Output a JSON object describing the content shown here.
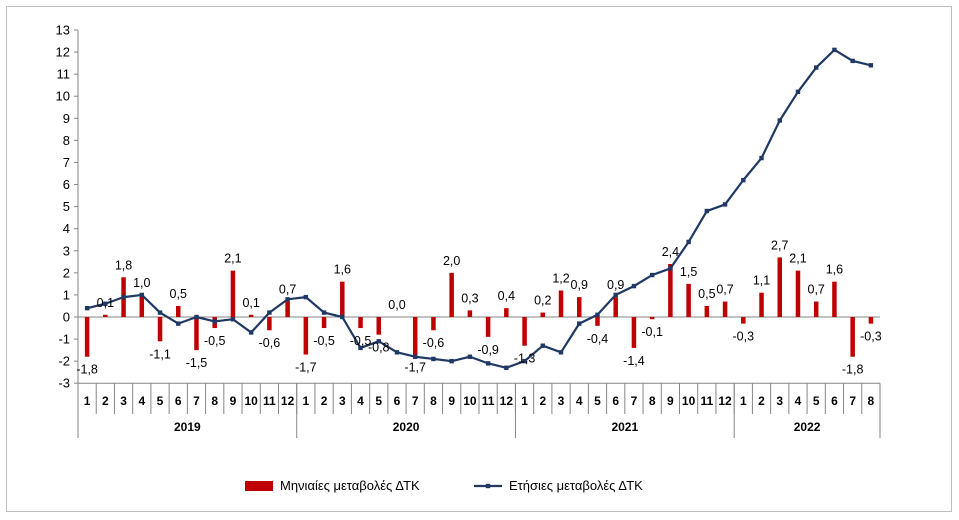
{
  "chart_data": {
    "type": "bar",
    "title": "",
    "xlabel": "",
    "ylabel": "",
    "ylim": [
      -3,
      13
    ],
    "yticks": [
      "-3",
      "-2",
      "-1",
      "0",
      "1",
      "2",
      "3",
      "4",
      "5",
      "6",
      "7",
      "8",
      "9",
      "10",
      "11",
      "12",
      "13"
    ],
    "grid": false,
    "legend_placement": "bottom",
    "years": [
      {
        "label": "2019",
        "months": [
          "1",
          "2",
          "3",
          "4",
          "5",
          "6",
          "7",
          "8",
          "9",
          "10",
          "11",
          "12"
        ]
      },
      {
        "label": "2020",
        "months": [
          "1",
          "2",
          "3",
          "4",
          "5",
          "6",
          "7",
          "8",
          "9",
          "10",
          "11",
          "12"
        ]
      },
      {
        "label": "2021",
        "months": [
          "1",
          "2",
          "3",
          "4",
          "5",
          "6",
          "7",
          "8",
          "9",
          "10",
          "11",
          "12"
        ]
      },
      {
        "label": "2022",
        "months": [
          "1",
          "2",
          "3",
          "4",
          "5",
          "6",
          "7",
          "8"
        ]
      }
    ],
    "series": [
      {
        "name": "Μηνιαίες μεταβολές ΔΤΚ",
        "kind": "bar",
        "color": "#c00000",
        "values": [
          -1.8,
          0.1,
          1.8,
          1.0,
          -1.1,
          0.5,
          -1.5,
          -0.5,
          2.1,
          0.1,
          -0.6,
          0.7,
          -1.7,
          -0.5,
          1.6,
          -0.5,
          -0.8,
          0.0,
          -1.7,
          -0.6,
          2.0,
          0.3,
          -0.9,
          0.4,
          -1.3,
          0.2,
          1.2,
          0.9,
          -0.4,
          0.9,
          -1.4,
          -0.1,
          2.4,
          1.5,
          0.5,
          0.7,
          -0.3,
          1.1,
          2.7,
          2.1,
          0.7,
          1.6,
          -1.8,
          -0.3
        ],
        "labels": [
          "-1,8",
          "0,1",
          "1,8",
          "1,0",
          "-1,1",
          "0,5",
          "-1,5",
          "-0,5",
          "2,1",
          "0,1",
          "-0,6",
          "0,7",
          "-1,7",
          "-0,5",
          "1,6",
          "-0,5",
          "-0,8",
          "0,0",
          "-1,7",
          "-0,6",
          "2,0",
          "0,3",
          "-0,9",
          "0,4",
          "-1,3",
          "0,2",
          "1,2",
          "0,9",
          "-0,4",
          "0,9",
          "-1,4",
          "-0,1",
          "2,4",
          "1,5",
          "0,5",
          "0,7",
          "-0,3",
          "1,1",
          "2,7",
          "2,1",
          "0,7",
          "1,6",
          "-1,8",
          "-0,3"
        ]
      },
      {
        "name": "Ετήσιες μεταβολές ΔΤΚ",
        "kind": "line",
        "color": "#1f3864",
        "values": [
          0.4,
          0.6,
          0.9,
          1.0,
          0.2,
          -0.3,
          0.0,
          -0.2,
          -0.1,
          -0.7,
          0.2,
          0.8,
          0.9,
          0.2,
          0.0,
          -1.4,
          -1.1,
          -1.6,
          -1.8,
          -1.9,
          -2.0,
          -1.8,
          -2.1,
          -2.3,
          -2.0,
          -1.3,
          -1.6,
          -0.3,
          0.1,
          1.0,
          1.4,
          1.9,
          2.2,
          3.4,
          4.8,
          5.1,
          6.2,
          7.2,
          8.9,
          10.2,
          11.3,
          12.1,
          11.6,
          11.4
        ]
      }
    ]
  }
}
